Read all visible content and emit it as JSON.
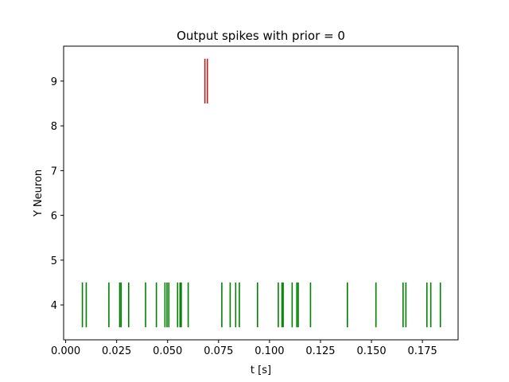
{
  "chart_data": {
    "type": "raster",
    "title": "Output spikes with prior = 0",
    "xlabel": "t [s]",
    "ylabel": "Y Neuron",
    "xlim": [
      -0.001,
      0.1925
    ],
    "ylim": [
      3.22,
      9.78
    ],
    "xticks": [
      0.0,
      0.025,
      0.05,
      0.075,
      0.1,
      0.125,
      0.15,
      0.175
    ],
    "xtick_labels": [
      "0.000",
      "0.025",
      "0.050",
      "0.075",
      "0.100",
      "0.125",
      "0.150",
      "0.175"
    ],
    "yticks": [
      4,
      5,
      6,
      7,
      8,
      9
    ],
    "ytick_labels": [
      "4",
      "5",
      "6",
      "7",
      "8",
      "9"
    ],
    "grid": false,
    "series": [
      {
        "neuron": 9,
        "color": "#b22222",
        "spike_times": [
          0.0683,
          0.0695
        ]
      },
      {
        "neuron": 4,
        "color": "#008000",
        "spike_times": [
          0.0082,
          0.0101,
          0.0212,
          0.0265,
          0.0272,
          0.0309,
          0.0392,
          0.0445,
          0.0487,
          0.0497,
          0.0506,
          0.0549,
          0.0561,
          0.0567,
          0.0601,
          0.0766,
          0.0807,
          0.0834,
          0.0852,
          0.0941,
          0.1043,
          0.1061,
          0.1067,
          0.1111,
          0.1134,
          0.1141,
          0.1201,
          0.1382,
          0.1522,
          0.1655,
          0.1669,
          0.1772,
          0.1791,
          0.1838
        ]
      }
    ]
  }
}
